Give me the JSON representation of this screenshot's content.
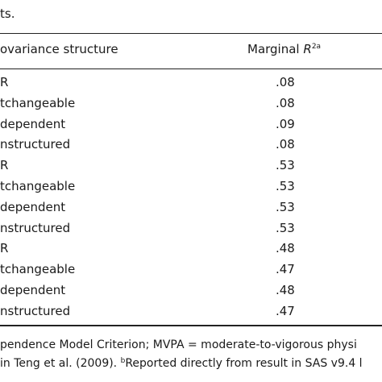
{
  "caption_tail": "ts.",
  "table": {
    "headers": {
      "covariance_structure": "ovariance structure",
      "marginal_r_prefix": "Marginal ",
      "marginal_r_symbol": "R",
      "marginal_r_sup": "2a"
    },
    "rows": [
      {
        "structure": "R",
        "marginal_r2": ".08"
      },
      {
        "structure": "tchangeable",
        "marginal_r2": ".08"
      },
      {
        "structure": "dependent",
        "marginal_r2": ".09"
      },
      {
        "structure": "nstructured",
        "marginal_r2": ".08"
      },
      {
        "structure": "R",
        "marginal_r2": ".53"
      },
      {
        "structure": "tchangeable",
        "marginal_r2": ".53"
      },
      {
        "structure": "dependent",
        "marginal_r2": ".53"
      },
      {
        "structure": "nstructured",
        "marginal_r2": ".53"
      },
      {
        "structure": "R",
        "marginal_r2": ".48"
      },
      {
        "structure": "tchangeable",
        "marginal_r2": ".47"
      },
      {
        "structure": "dependent",
        "marginal_r2": ".48"
      },
      {
        "structure": "nstructured",
        "marginal_r2": ".47"
      }
    ]
  },
  "footnote": {
    "line1": "pendence Model Criterion; MVPA = moderate-to-vigorous physi",
    "line2_a": " in Teng et al. (2009). ",
    "line2_sup": "b",
    "line2_b": "Reported directly from result in SAS v9.4 l"
  }
}
